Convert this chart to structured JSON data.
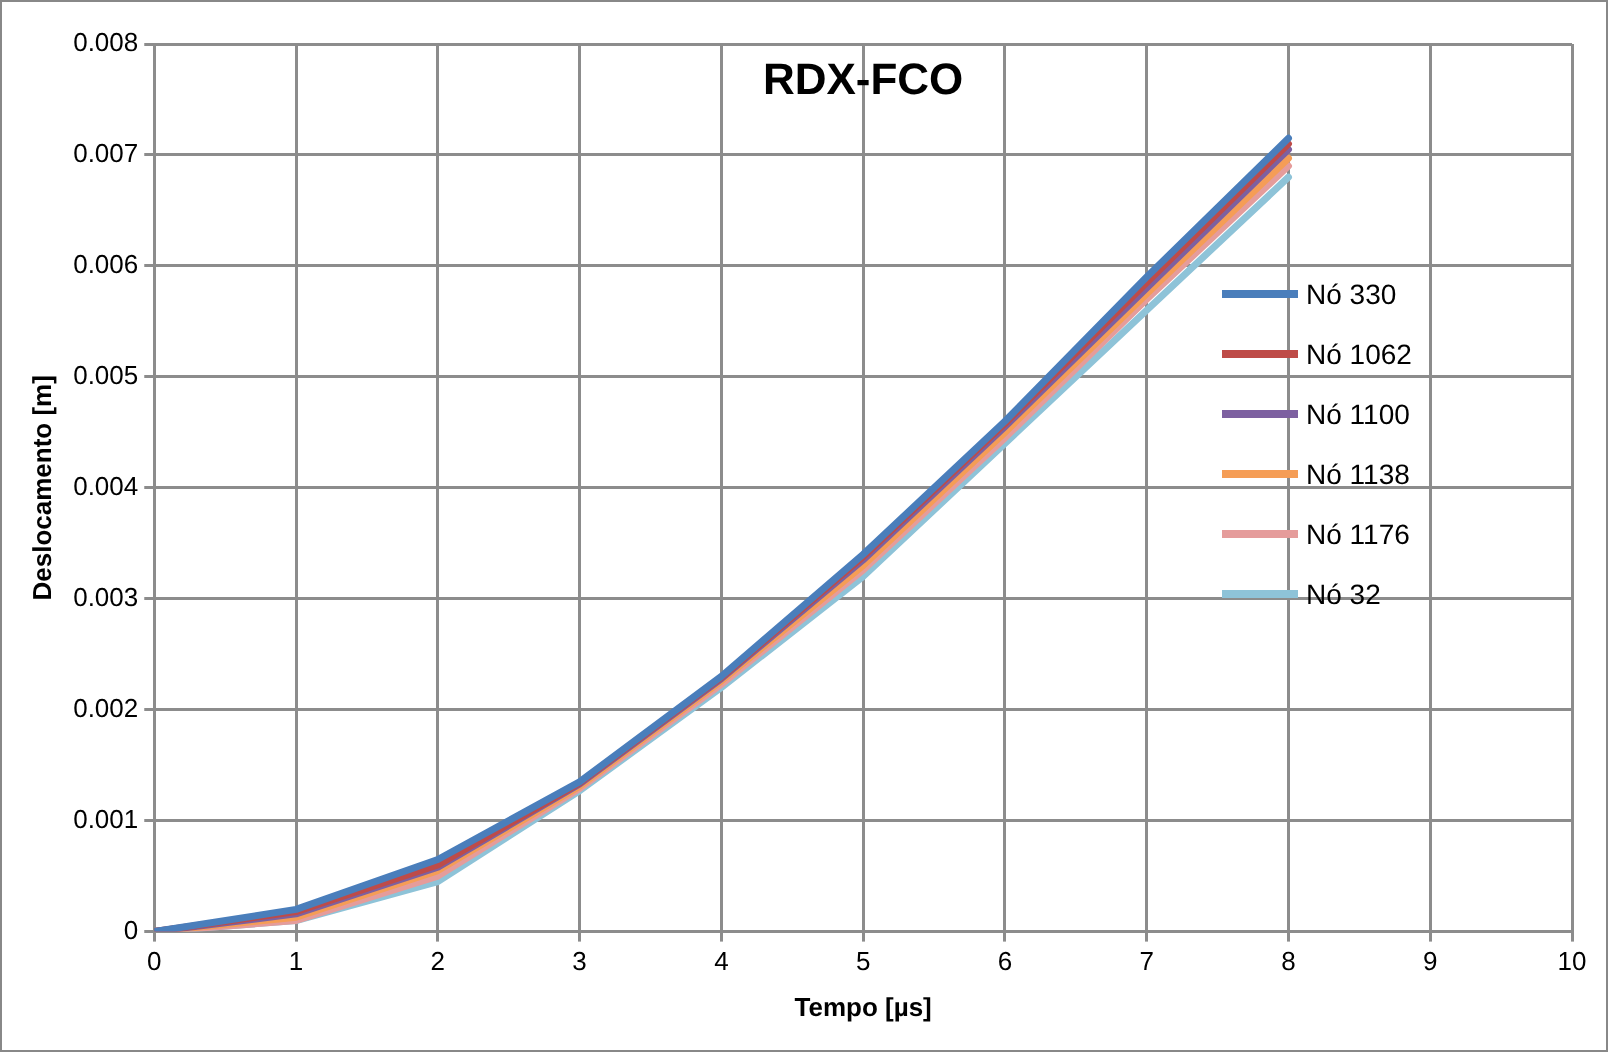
{
  "chart_data": {
    "type": "line",
    "title": "RDX-FCO",
    "xlabel": "Tempo [µs]",
    "ylabel": "Deslocamento [m]",
    "x": [
      0,
      1,
      2,
      3,
      4,
      5,
      6,
      7,
      8
    ],
    "series": [
      {
        "name": "Nó 330",
        "color": "#4a7ebb",
        "values": [
          0,
          0.0002,
          0.00065,
          0.00135,
          0.0023,
          0.0034,
          0.0046,
          0.0059,
          0.00715
        ]
      },
      {
        "name": "Nó 1062",
        "color": "#be4b48",
        "values": [
          0,
          0.00018,
          0.0006,
          0.00134,
          0.00229,
          0.00338,
          0.00458,
          0.00585,
          0.0071
        ]
      },
      {
        "name": "Nó 1100",
        "color": "#7d60a0",
        "values": [
          0,
          0.00016,
          0.00058,
          0.00133,
          0.00228,
          0.00335,
          0.00455,
          0.0058,
          0.00705
        ]
      },
      {
        "name": "Nó 1138",
        "color": "#f59d56",
        "values": [
          0,
          0.00013,
          0.00055,
          0.00131,
          0.00226,
          0.0033,
          0.0045,
          0.00575,
          0.00697
        ]
      },
      {
        "name": "Nó 1176",
        "color": "#e59c9b",
        "values": [
          0,
          0.0001,
          0.0005,
          0.00129,
          0.00223,
          0.00326,
          0.00445,
          0.0057,
          0.0069
        ]
      },
      {
        "name": "Nó 32",
        "color": "#8ec3d8",
        "values": [
          0,
          0.0001,
          0.00045,
          0.00127,
          0.0022,
          0.0032,
          0.0044,
          0.0056,
          0.0068
        ]
      }
    ],
    "xlim": [
      0,
      10
    ],
    "xticks": [
      0,
      1,
      2,
      3,
      4,
      5,
      6,
      7,
      8,
      9,
      10
    ],
    "ylim": [
      0,
      0.008
    ],
    "yticks": [
      0,
      0.001,
      0.002,
      0.003,
      0.004,
      0.005,
      0.006,
      0.007,
      0.008
    ],
    "grid": true,
    "legend": "right",
    "marker": "none",
    "line_style": "solid"
  }
}
